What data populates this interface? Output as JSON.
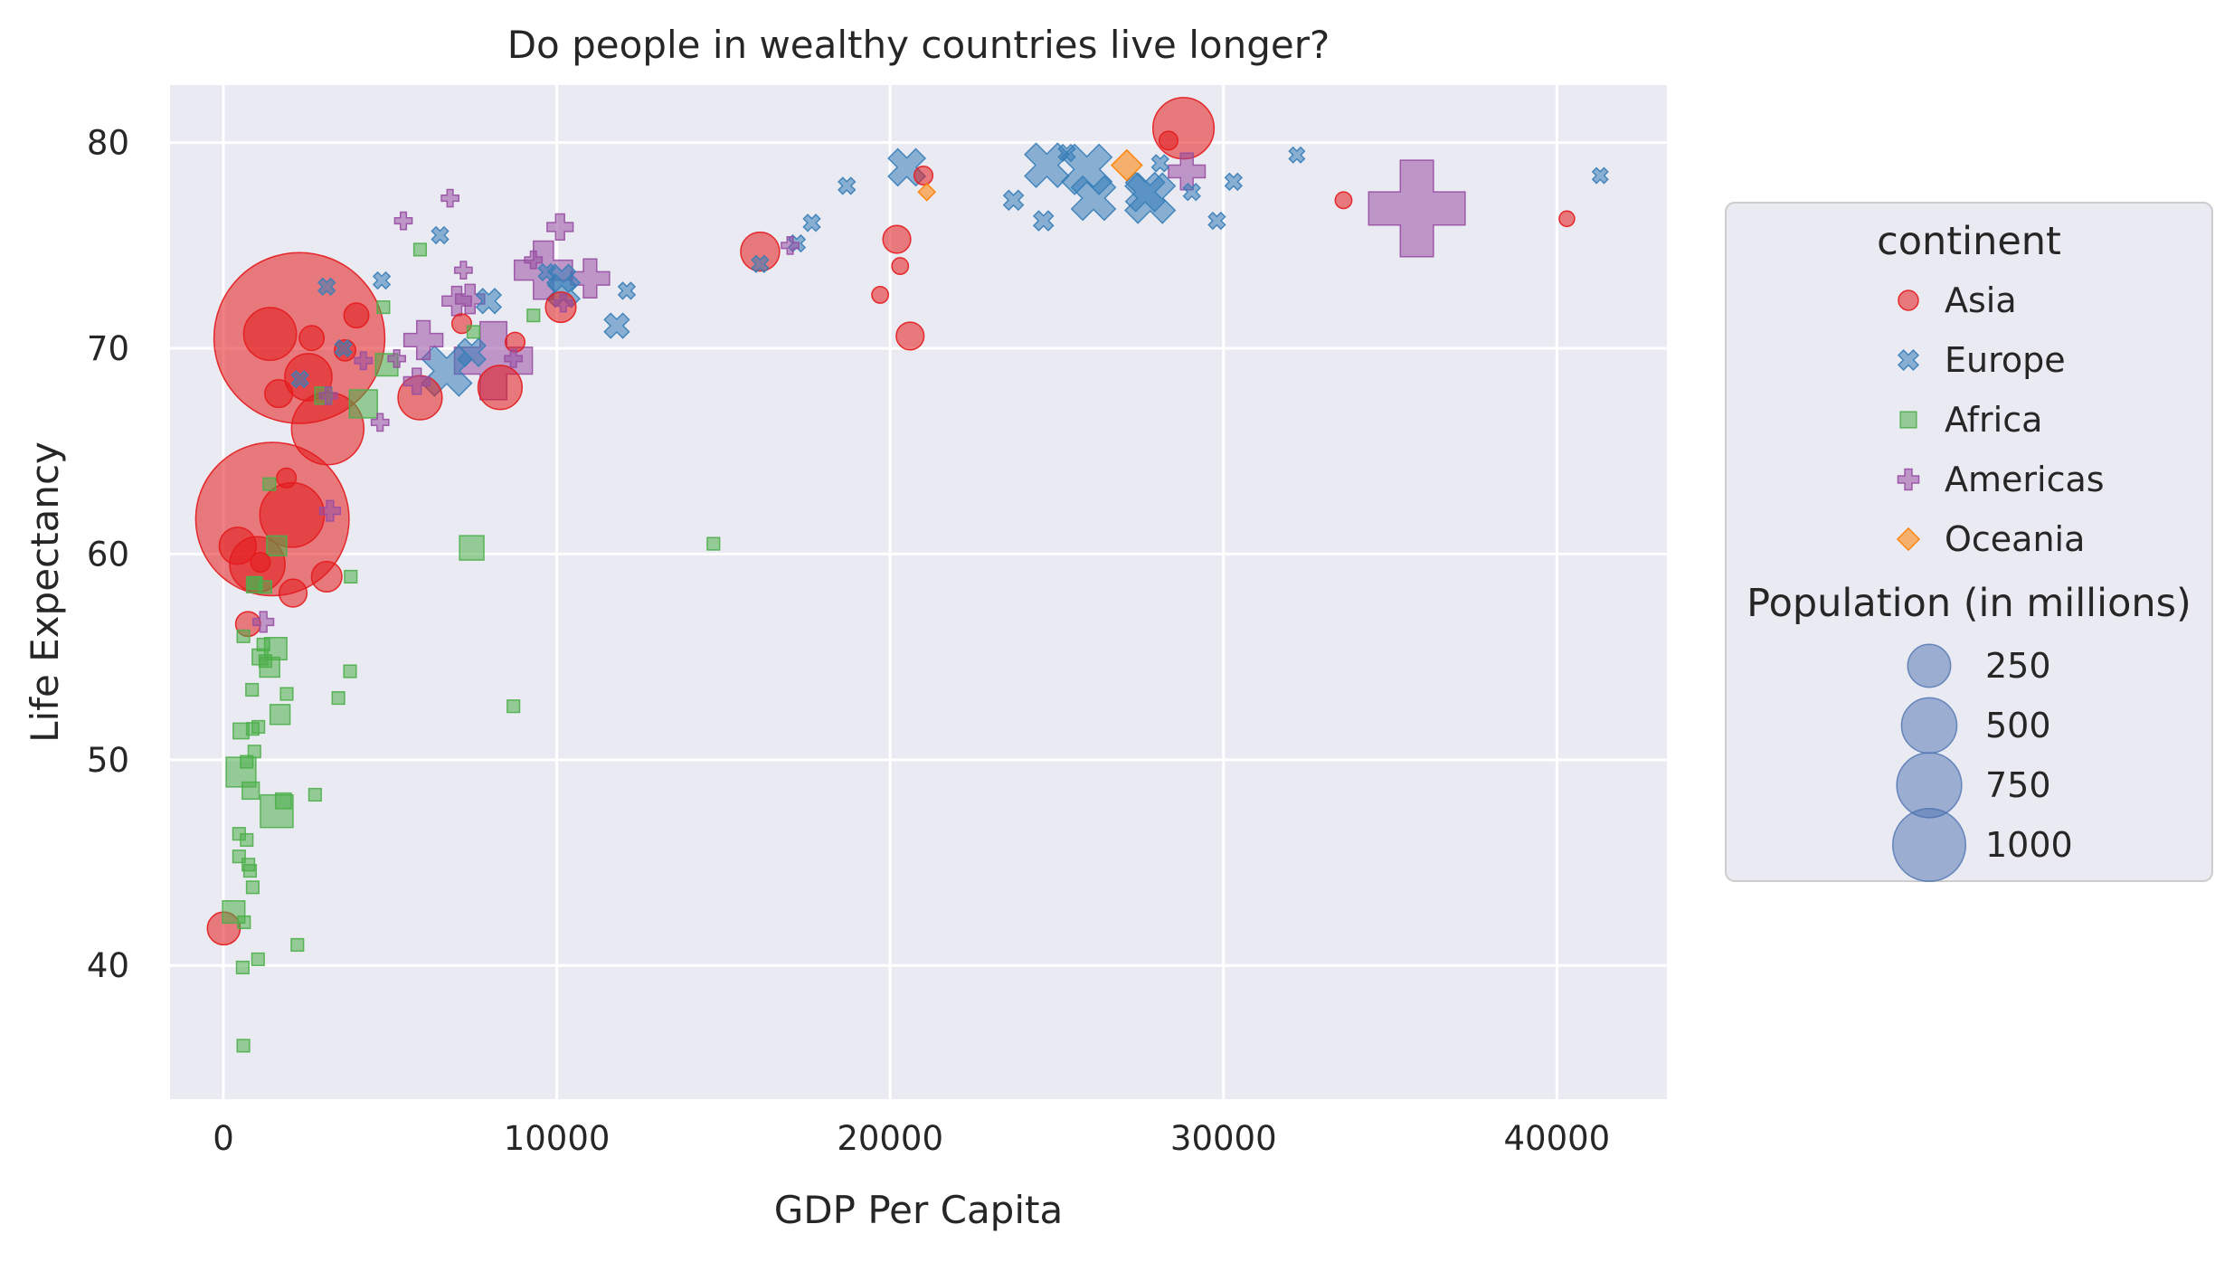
{
  "chart_data": {
    "type": "scatter",
    "title": "Do people in wealthy countries live longer?",
    "xlabel": "GDP Per Capita",
    "ylabel": "Life Expectancy",
    "xlim": [
      -1600,
      43300
    ],
    "ylim": [
      33.5,
      82.8
    ],
    "xticks": [
      0,
      10000,
      20000,
      30000,
      40000
    ],
    "yticks": [
      40,
      50,
      60,
      70,
      80
    ],
    "grid": true,
    "legend_position": "right",
    "continent_legend_title": "continent",
    "size_legend_title": "Population (in millions)",
    "size_legend_values": [
      250,
      500,
      750,
      1000
    ],
    "series": [
      {
        "name": "Asia",
        "marker": "circle",
        "color": "#e41a1c",
        "points": [
          {
            "x": 2280,
            "y": 70.5,
            "pop": 1100
          },
          {
            "x": 1470,
            "y": 61.7,
            "pop": 880
          },
          {
            "x": 3130,
            "y": 66.1,
            "pop": 180
          },
          {
            "x": 2060,
            "y": 61.9,
            "pop": 140
          },
          {
            "x": 1400,
            "y": 70.7,
            "pop": 90
          },
          {
            "x": 2550,
            "y": 68.6,
            "pop": 70
          },
          {
            "x": 1020,
            "y": 59.5,
            "pop": 100
          },
          {
            "x": 28800,
            "y": 80.7,
            "pop": 125
          },
          {
            "x": 16100,
            "y": 74.7,
            "pop": 45
          },
          {
            "x": 5900,
            "y": 67.6,
            "pop": 60
          },
          {
            "x": 8300,
            "y": 68.1,
            "pop": 60
          },
          {
            "x": 430,
            "y": 60.4,
            "pop": 40
          },
          {
            "x": 3100,
            "y": 58.9,
            "pop": 25
          },
          {
            "x": 2090,
            "y": 58.1,
            "pop": 20
          },
          {
            "x": 1660,
            "y": 67.8,
            "pop": 20
          },
          {
            "x": 20600,
            "y": 70.6,
            "pop": 20
          },
          {
            "x": 10120,
            "y": 72.0,
            "pop": 25
          },
          {
            "x": 20200,
            "y": 75.3,
            "pop": 20
          },
          {
            "x": 3990,
            "y": 71.6,
            "pop": 15
          },
          {
            "x": 12,
            "y": 41.8,
            "pop": 30
          },
          {
            "x": 740,
            "y": 56.6,
            "pop": 15
          },
          {
            "x": 2650,
            "y": 70.5,
            "pop": 15
          },
          {
            "x": 3650,
            "y": 69.9,
            "pop": 10
          },
          {
            "x": 7150,
            "y": 71.2,
            "pop": 8
          },
          {
            "x": 8750,
            "y": 70.3,
            "pop": 8
          },
          {
            "x": 1890,
            "y": 63.7,
            "pop": 8
          },
          {
            "x": 20300,
            "y": 74.0,
            "pop": 5
          },
          {
            "x": 19700,
            "y": 72.6,
            "pop": 5
          },
          {
            "x": 21000,
            "y": 78.4,
            "pop": 7
          },
          {
            "x": 28350,
            "y": 80.1,
            "pop": 7
          },
          {
            "x": 33600,
            "y": 77.2,
            "pop": 5
          },
          {
            "x": 40300,
            "y": 76.3,
            "pop": 4
          },
          {
            "x": 1110,
            "y": 59.6,
            "pop": 8
          }
        ]
      },
      {
        "name": "Europe",
        "marker": "x",
        "color": "#377eb8",
        "points": [
          {
            "x": 25900,
            "y": 78.7,
            "pop": 80
          },
          {
            "x": 27800,
            "y": 77.3,
            "pop": 80
          },
          {
            "x": 24700,
            "y": 78.9,
            "pop": 60
          },
          {
            "x": 26100,
            "y": 77.3,
            "pop": 60
          },
          {
            "x": 6700,
            "y": 68.9,
            "pop": 80
          },
          {
            "x": 27650,
            "y": 77.6,
            "pop": 45
          },
          {
            "x": 10200,
            "y": 72.8,
            "pop": 30
          },
          {
            "x": 20500,
            "y": 78.8,
            "pop": 40
          },
          {
            "x": 7450,
            "y": 69.8,
            "pop": 20
          },
          {
            "x": 10150,
            "y": 73.4,
            "pop": 20
          },
          {
            "x": 7960,
            "y": 72.3,
            "pop": 15
          },
          {
            "x": 11800,
            "y": 71.1,
            "pop": 15
          },
          {
            "x": 12100,
            "y": 72.8,
            "pop": 5
          },
          {
            "x": 3100,
            "y": 73.0,
            "pop": 5
          },
          {
            "x": 4750,
            "y": 73.3,
            "pop": 5
          },
          {
            "x": 6500,
            "y": 75.5,
            "pop": 5
          },
          {
            "x": 9700,
            "y": 73.7,
            "pop": 5
          },
          {
            "x": 16100,
            "y": 74.1,
            "pop": 5
          },
          {
            "x": 17650,
            "y": 76.1,
            "pop": 5
          },
          {
            "x": 17200,
            "y": 75.1,
            "pop": 5
          },
          {
            "x": 18700,
            "y": 77.9,
            "pop": 5
          },
          {
            "x": 23700,
            "y": 77.2,
            "pop": 8
          },
          {
            "x": 24600,
            "y": 76.2,
            "pop": 8
          },
          {
            "x": 25300,
            "y": 79.5,
            "pop": 5
          },
          {
            "x": 28100,
            "y": 79.0,
            "pop": 5
          },
          {
            "x": 29050,
            "y": 77.6,
            "pop": 5
          },
          {
            "x": 29800,
            "y": 76.2,
            "pop": 5
          },
          {
            "x": 30300,
            "y": 78.1,
            "pop": 5
          },
          {
            "x": 32200,
            "y": 79.4,
            "pop": 4
          },
          {
            "x": 41300,
            "y": 78.4,
            "pop": 4
          },
          {
            "x": 2300,
            "y": 68.5,
            "pop": 5
          },
          {
            "x": 3600,
            "y": 70.0,
            "pop": 5
          }
        ]
      },
      {
        "name": "Africa",
        "marker": "square",
        "color": "#4daf4a",
        "points": [
          {
            "x": 1600,
            "y": 47.5,
            "pop": 50
          },
          {
            "x": 530,
            "y": 49.4,
            "pop": 40
          },
          {
            "x": 4200,
            "y": 67.3,
            "pop": 35
          },
          {
            "x": 7450,
            "y": 60.3,
            "pop": 25
          },
          {
            "x": 4900,
            "y": 69.2,
            "pop": 20
          },
          {
            "x": 1570,
            "y": 55.4,
            "pop": 20
          },
          {
            "x": 310,
            "y": 42.6,
            "pop": 20
          },
          {
            "x": 1390,
            "y": 54.5,
            "pop": 15
          },
          {
            "x": 1700,
            "y": 52.2,
            "pop": 15
          },
          {
            "x": 1600,
            "y": 60.4,
            "pop": 15
          },
          {
            "x": 3000,
            "y": 67.7,
            "pop": 10
          },
          {
            "x": 820,
            "y": 48.5,
            "pop": 10
          },
          {
            "x": 1800,
            "y": 48.0,
            "pop": 8
          },
          {
            "x": 1100,
            "y": 55.0,
            "pop": 8
          },
          {
            "x": 930,
            "y": 58.5,
            "pop": 8
          },
          {
            "x": 530,
            "y": 51.4,
            "pop": 8
          },
          {
            "x": 14700,
            "y": 60.5,
            "pop": 4
          },
          {
            "x": 8700,
            "y": 52.6,
            "pop": 4
          },
          {
            "x": 3800,
            "y": 54.3,
            "pop": 4
          },
          {
            "x": 3450,
            "y": 53.0,
            "pop": 4
          },
          {
            "x": 2750,
            "y": 48.3,
            "pop": 4
          },
          {
            "x": 2220,
            "y": 41.0,
            "pop": 4
          },
          {
            "x": 1040,
            "y": 40.3,
            "pop": 4
          },
          {
            "x": 580,
            "y": 39.9,
            "pop": 4
          },
          {
            "x": 600,
            "y": 36.1,
            "pop": 4
          },
          {
            "x": 470,
            "y": 46.4,
            "pop": 4
          },
          {
            "x": 470,
            "y": 45.3,
            "pop": 4
          },
          {
            "x": 700,
            "y": 46.1,
            "pop": 4
          },
          {
            "x": 800,
            "y": 44.6,
            "pop": 4
          },
          {
            "x": 880,
            "y": 43.8,
            "pop": 4
          },
          {
            "x": 620,
            "y": 42.1,
            "pop": 4
          },
          {
            "x": 750,
            "y": 44.9,
            "pop": 4
          },
          {
            "x": 700,
            "y": 49.9,
            "pop": 4
          },
          {
            "x": 930,
            "y": 50.4,
            "pop": 4
          },
          {
            "x": 880,
            "y": 51.5,
            "pop": 4
          },
          {
            "x": 1050,
            "y": 51.6,
            "pop": 4
          },
          {
            "x": 860,
            "y": 53.4,
            "pop": 4
          },
          {
            "x": 1200,
            "y": 55.6,
            "pop": 4
          },
          {
            "x": 600,
            "y": 56.0,
            "pop": 4
          },
          {
            "x": 1260,
            "y": 54.8,
            "pop": 4
          },
          {
            "x": 1900,
            "y": 53.2,
            "pop": 4
          },
          {
            "x": 1260,
            "y": 58.4,
            "pop": 4
          },
          {
            "x": 940,
            "y": 58.6,
            "pop": 4
          },
          {
            "x": 1380,
            "y": 63.4,
            "pop": 4
          },
          {
            "x": 3820,
            "y": 58.9,
            "pop": 4
          },
          {
            "x": 5900,
            "y": 74.8,
            "pop": 4
          },
          {
            "x": 4800,
            "y": 72.0,
            "pop": 4
          },
          {
            "x": 7500,
            "y": 70.8,
            "pop": 4
          },
          {
            "x": 9300,
            "y": 71.6,
            "pop": 4
          }
        ]
      },
      {
        "name": "Americas",
        "marker": "plus",
        "color": "#984ea3",
        "points": [
          {
            "x": 35800,
            "y": 76.8,
            "pop": 300
          },
          {
            "x": 8100,
            "y": 69.4,
            "pop": 190
          },
          {
            "x": 9600,
            "y": 73.8,
            "pop": 100
          },
          {
            "x": 6000,
            "y": 70.4,
            "pop": 40
          },
          {
            "x": 11000,
            "y": 73.4,
            "pop": 40
          },
          {
            "x": 28900,
            "y": 78.6,
            "pop": 35
          },
          {
            "x": 7000,
            "y": 72.3,
            "pop": 20
          },
          {
            "x": 7400,
            "y": 72.4,
            "pop": 20
          },
          {
            "x": 5800,
            "y": 68.4,
            "pop": 15
          },
          {
            "x": 10100,
            "y": 75.9,
            "pop": 15
          },
          {
            "x": 5400,
            "y": 76.2,
            "pop": 5
          },
          {
            "x": 6800,
            "y": 77.3,
            "pop": 5
          },
          {
            "x": 3200,
            "y": 62.1,
            "pop": 8
          },
          {
            "x": 1200,
            "y": 56.7,
            "pop": 8
          },
          {
            "x": 4700,
            "y": 66.4,
            "pop": 5
          },
          {
            "x": 5200,
            "y": 69.5,
            "pop": 5
          },
          {
            "x": 4200,
            "y": 69.4,
            "pop": 5
          },
          {
            "x": 7200,
            "y": 73.8,
            "pop": 5
          },
          {
            "x": 8700,
            "y": 69.5,
            "pop": 5
          },
          {
            "x": 9300,
            "y": 74.3,
            "pop": 5
          },
          {
            "x": 10200,
            "y": 72.2,
            "pop": 5
          },
          {
            "x": 17000,
            "y": 75.0,
            "pop": 5
          },
          {
            "x": 3150,
            "y": 67.7,
            "pop": 5
          }
        ]
      },
      {
        "name": "Oceania",
        "marker": "diamond",
        "color": "#ff7f00",
        "points": [
          {
            "x": 27100,
            "y": 78.9,
            "pop": 20
          },
          {
            "x": 21100,
            "y": 77.6,
            "pop": 4
          }
        ]
      }
    ]
  }
}
